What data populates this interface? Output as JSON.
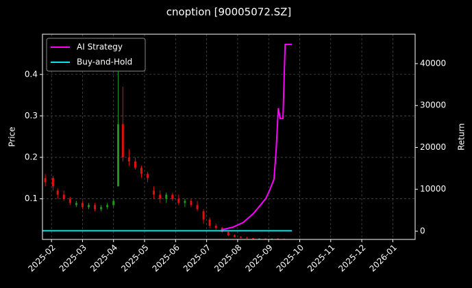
{
  "chart_data": {
    "type": "candlestick",
    "title": "cnoption [90005072.SZ]",
    "ylabel": "Price",
    "y2label": "Return",
    "xlim": [
      -0.29,
      11.72
    ],
    "xticks": [
      {
        "value": 0,
        "label": "2025-02"
      },
      {
        "value": 1,
        "label": "2025-03"
      },
      {
        "value": 2,
        "label": "2025-04"
      },
      {
        "value": 3,
        "label": "2025-05"
      },
      {
        "value": 4,
        "label": "2025-06"
      },
      {
        "value": 5,
        "label": "2025-07"
      },
      {
        "value": 6,
        "label": "2025-08"
      },
      {
        "value": 7,
        "label": "2025-09"
      },
      {
        "value": 8,
        "label": "2025-10"
      },
      {
        "value": 9,
        "label": "2025-11"
      },
      {
        "value": 10,
        "label": "2025-12"
      },
      {
        "value": 11,
        "label": "2026-01"
      }
    ],
    "ylim": [
      0.002,
      0.497
    ],
    "yticks": [
      0.1,
      0.2,
      0.3,
      0.4
    ],
    "y2lim": [
      -1960,
      47020
    ],
    "y2ticks": [
      0,
      10000,
      20000,
      30000,
      40000
    ],
    "grid": true,
    "legend": "upper left",
    "up_color": "#1a9a1a",
    "down_color": "#e01010",
    "candles": {
      "x": [
        -0.2,
        0.05,
        0.2,
        0.4,
        0.6,
        0.8,
        1.0,
        1.2,
        1.4,
        1.6,
        1.8,
        2.0,
        2.15,
        2.3,
        2.5,
        2.7,
        2.9,
        3.1,
        3.3,
        3.5,
        3.7,
        3.9,
        4.1,
        4.3,
        4.5,
        4.7,
        4.9,
        5.1,
        5.3,
        5.5,
        5.7,
        5.9,
        6.1,
        6.3,
        6.5,
        6.7,
        6.9,
        7.1,
        7.3,
        7.5
      ],
      "open": [
        0.15,
        0.15,
        0.12,
        0.11,
        0.1,
        0.085,
        0.09,
        0.08,
        0.085,
        0.075,
        0.08,
        0.085,
        0.13,
        0.28,
        0.2,
        0.19,
        0.175,
        0.16,
        0.12,
        0.11,
        0.1,
        0.11,
        0.1,
        0.09,
        0.095,
        0.085,
        0.07,
        0.05,
        0.035,
        0.03,
        0.02,
        0.012,
        0.008,
        0.006,
        0.005,
        0.004,
        0.004,
        0.0035,
        0.004,
        0.0035
      ],
      "high": [
        0.16,
        0.155,
        0.125,
        0.12,
        0.105,
        0.095,
        0.095,
        0.09,
        0.09,
        0.085,
        0.09,
        0.1,
        0.42,
        0.37,
        0.22,
        0.2,
        0.18,
        0.165,
        0.13,
        0.12,
        0.115,
        0.115,
        0.11,
        0.1,
        0.1,
        0.095,
        0.075,
        0.055,
        0.04,
        0.032,
        0.022,
        0.014,
        0.01,
        0.008,
        0.006,
        0.005,
        0.005,
        0.004,
        0.005,
        0.004
      ],
      "low": [
        0.13,
        0.12,
        0.1,
        0.095,
        0.085,
        0.08,
        0.075,
        0.075,
        0.07,
        0.07,
        0.075,
        0.08,
        0.13,
        0.19,
        0.18,
        0.17,
        0.15,
        0.14,
        0.1,
        0.09,
        0.09,
        0.095,
        0.085,
        0.08,
        0.08,
        0.07,
        0.04,
        0.03,
        0.025,
        0.018,
        0.01,
        0.007,
        0.005,
        0.004,
        0.003,
        0.003,
        0.003,
        0.003,
        0.003,
        0.003
      ],
      "close": [
        0.14,
        0.13,
        0.11,
        0.1,
        0.09,
        0.09,
        0.08,
        0.085,
        0.075,
        0.08,
        0.085,
        0.095,
        0.28,
        0.2,
        0.19,
        0.175,
        0.16,
        0.15,
        0.11,
        0.1,
        0.11,
        0.1,
        0.09,
        0.095,
        0.085,
        0.075,
        0.05,
        0.035,
        0.03,
        0.02,
        0.012,
        0.008,
        0.006,
        0.005,
        0.004,
        0.004,
        0.0035,
        0.004,
        0.0035,
        0.003
      ]
    },
    "series": [
      {
        "name": "AI Strategy",
        "color": "#ff00ff",
        "axis": "y2",
        "x": [
          5.47,
          5.85,
          6.18,
          6.51,
          6.73,
          6.91,
          7.06,
          7.17,
          7.24,
          7.31,
          7.37,
          7.46,
          7.53,
          7.75
        ],
        "values": [
          300,
          980,
          2100,
          4240,
          6200,
          7840,
          10300,
          12400,
          19300,
          29400,
          26900,
          26900,
          44600,
          44600
        ]
      },
      {
        "name": "Buy-and-Hold",
        "color": "#00e5ee",
        "axis": "y2",
        "x": [
          -0.29,
          7.75
        ],
        "values": [
          100,
          100
        ]
      }
    ]
  }
}
